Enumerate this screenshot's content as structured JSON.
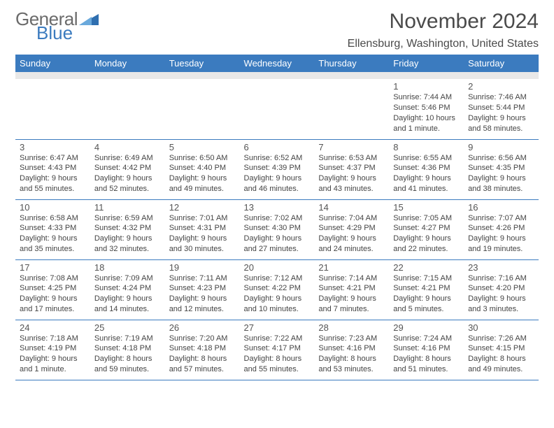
{
  "brand": {
    "part1": "General",
    "part2": "Blue",
    "tri_color": "#2f6fb0"
  },
  "title": "November 2024",
  "location": "Ellensburg, Washington, United States",
  "header_bg": "#3b7bbf",
  "columns": [
    "Sunday",
    "Monday",
    "Tuesday",
    "Wednesday",
    "Thursday",
    "Friday",
    "Saturday"
  ],
  "weeks": [
    [
      null,
      null,
      null,
      null,
      null,
      {
        "n": "1",
        "sunrise": "Sunrise: 7:44 AM",
        "sunset": "Sunset: 5:46 PM",
        "daylight": "Daylight: 10 hours and 1 minute."
      },
      {
        "n": "2",
        "sunrise": "Sunrise: 7:46 AM",
        "sunset": "Sunset: 5:44 PM",
        "daylight": "Daylight: 9 hours and 58 minutes."
      }
    ],
    [
      {
        "n": "3",
        "sunrise": "Sunrise: 6:47 AM",
        "sunset": "Sunset: 4:43 PM",
        "daylight": "Daylight: 9 hours and 55 minutes."
      },
      {
        "n": "4",
        "sunrise": "Sunrise: 6:49 AM",
        "sunset": "Sunset: 4:42 PM",
        "daylight": "Daylight: 9 hours and 52 minutes."
      },
      {
        "n": "5",
        "sunrise": "Sunrise: 6:50 AM",
        "sunset": "Sunset: 4:40 PM",
        "daylight": "Daylight: 9 hours and 49 minutes."
      },
      {
        "n": "6",
        "sunrise": "Sunrise: 6:52 AM",
        "sunset": "Sunset: 4:39 PM",
        "daylight": "Daylight: 9 hours and 46 minutes."
      },
      {
        "n": "7",
        "sunrise": "Sunrise: 6:53 AM",
        "sunset": "Sunset: 4:37 PM",
        "daylight": "Daylight: 9 hours and 43 minutes."
      },
      {
        "n": "8",
        "sunrise": "Sunrise: 6:55 AM",
        "sunset": "Sunset: 4:36 PM",
        "daylight": "Daylight: 9 hours and 41 minutes."
      },
      {
        "n": "9",
        "sunrise": "Sunrise: 6:56 AM",
        "sunset": "Sunset: 4:35 PM",
        "daylight": "Daylight: 9 hours and 38 minutes."
      }
    ],
    [
      {
        "n": "10",
        "sunrise": "Sunrise: 6:58 AM",
        "sunset": "Sunset: 4:33 PM",
        "daylight": "Daylight: 9 hours and 35 minutes."
      },
      {
        "n": "11",
        "sunrise": "Sunrise: 6:59 AM",
        "sunset": "Sunset: 4:32 PM",
        "daylight": "Daylight: 9 hours and 32 minutes."
      },
      {
        "n": "12",
        "sunrise": "Sunrise: 7:01 AM",
        "sunset": "Sunset: 4:31 PM",
        "daylight": "Daylight: 9 hours and 30 minutes."
      },
      {
        "n": "13",
        "sunrise": "Sunrise: 7:02 AM",
        "sunset": "Sunset: 4:30 PM",
        "daylight": "Daylight: 9 hours and 27 minutes."
      },
      {
        "n": "14",
        "sunrise": "Sunrise: 7:04 AM",
        "sunset": "Sunset: 4:29 PM",
        "daylight": "Daylight: 9 hours and 24 minutes."
      },
      {
        "n": "15",
        "sunrise": "Sunrise: 7:05 AM",
        "sunset": "Sunset: 4:27 PM",
        "daylight": "Daylight: 9 hours and 22 minutes."
      },
      {
        "n": "16",
        "sunrise": "Sunrise: 7:07 AM",
        "sunset": "Sunset: 4:26 PM",
        "daylight": "Daylight: 9 hours and 19 minutes."
      }
    ],
    [
      {
        "n": "17",
        "sunrise": "Sunrise: 7:08 AM",
        "sunset": "Sunset: 4:25 PM",
        "daylight": "Daylight: 9 hours and 17 minutes."
      },
      {
        "n": "18",
        "sunrise": "Sunrise: 7:09 AM",
        "sunset": "Sunset: 4:24 PM",
        "daylight": "Daylight: 9 hours and 14 minutes."
      },
      {
        "n": "19",
        "sunrise": "Sunrise: 7:11 AM",
        "sunset": "Sunset: 4:23 PM",
        "daylight": "Daylight: 9 hours and 12 minutes."
      },
      {
        "n": "20",
        "sunrise": "Sunrise: 7:12 AM",
        "sunset": "Sunset: 4:22 PM",
        "daylight": "Daylight: 9 hours and 10 minutes."
      },
      {
        "n": "21",
        "sunrise": "Sunrise: 7:14 AM",
        "sunset": "Sunset: 4:21 PM",
        "daylight": "Daylight: 9 hours and 7 minutes."
      },
      {
        "n": "22",
        "sunrise": "Sunrise: 7:15 AM",
        "sunset": "Sunset: 4:21 PM",
        "daylight": "Daylight: 9 hours and 5 minutes."
      },
      {
        "n": "23",
        "sunrise": "Sunrise: 7:16 AM",
        "sunset": "Sunset: 4:20 PM",
        "daylight": "Daylight: 9 hours and 3 minutes."
      }
    ],
    [
      {
        "n": "24",
        "sunrise": "Sunrise: 7:18 AM",
        "sunset": "Sunset: 4:19 PM",
        "daylight": "Daylight: 9 hours and 1 minute."
      },
      {
        "n": "25",
        "sunrise": "Sunrise: 7:19 AM",
        "sunset": "Sunset: 4:18 PM",
        "daylight": "Daylight: 8 hours and 59 minutes."
      },
      {
        "n": "26",
        "sunrise": "Sunrise: 7:20 AM",
        "sunset": "Sunset: 4:18 PM",
        "daylight": "Daylight: 8 hours and 57 minutes."
      },
      {
        "n": "27",
        "sunrise": "Sunrise: 7:22 AM",
        "sunset": "Sunset: 4:17 PM",
        "daylight": "Daylight: 8 hours and 55 minutes."
      },
      {
        "n": "28",
        "sunrise": "Sunrise: 7:23 AM",
        "sunset": "Sunset: 4:16 PM",
        "daylight": "Daylight: 8 hours and 53 minutes."
      },
      {
        "n": "29",
        "sunrise": "Sunrise: 7:24 AM",
        "sunset": "Sunset: 4:16 PM",
        "daylight": "Daylight: 8 hours and 51 minutes."
      },
      {
        "n": "30",
        "sunrise": "Sunrise: 7:26 AM",
        "sunset": "Sunset: 4:15 PM",
        "daylight": "Daylight: 8 hours and 49 minutes."
      }
    ]
  ]
}
